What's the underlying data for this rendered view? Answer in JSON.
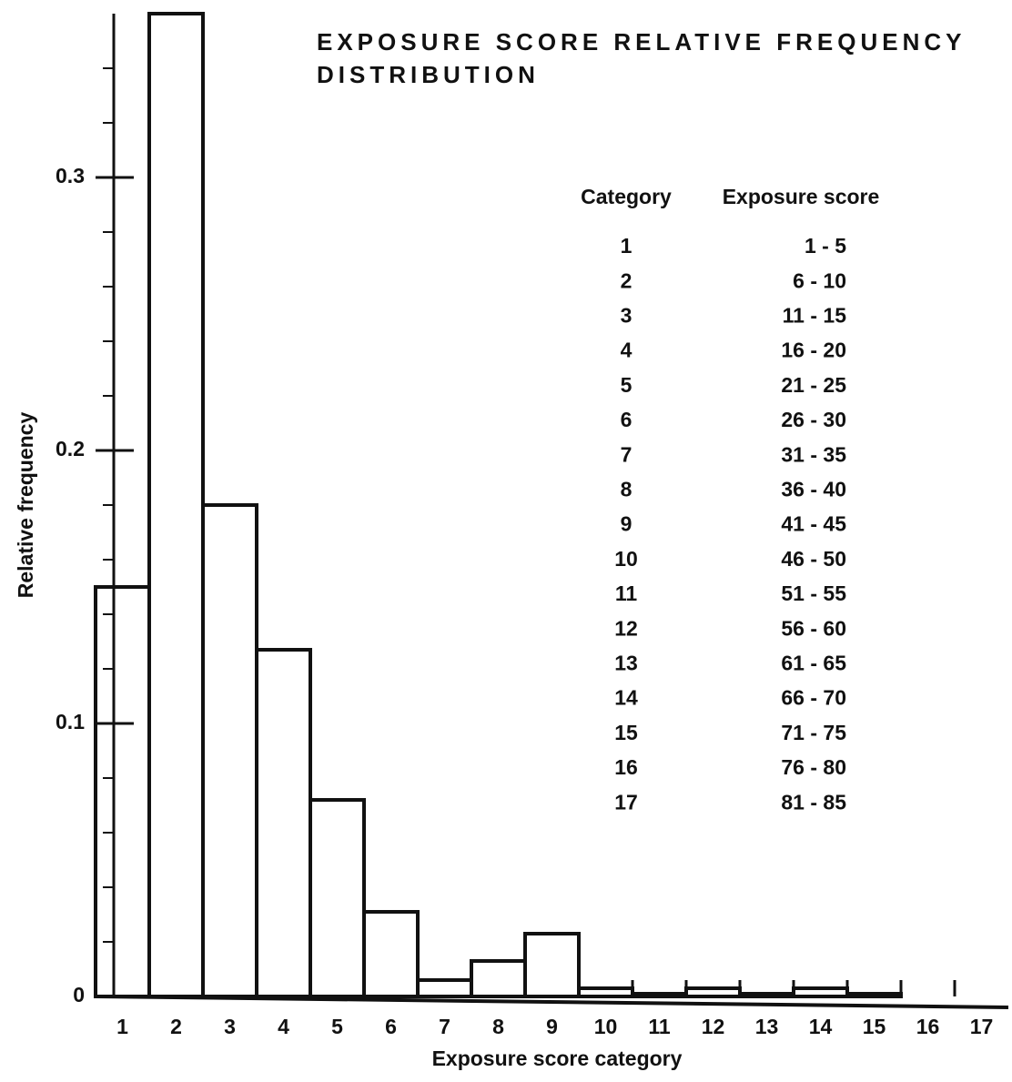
{
  "chart_data": {
    "type": "bar",
    "title": "EXPOSURE SCORE RELATIVE FREQUENCY DISTRIBUTION",
    "x_label": "Exposure score category",
    "y_label": "Relative frequency",
    "categories": [
      "1",
      "2",
      "3",
      "4",
      "5",
      "6",
      "7",
      "8",
      "9",
      "10",
      "11",
      "12",
      "13",
      "14",
      "15",
      "16",
      "17"
    ],
    "values": [
      0.15,
      0.36,
      0.18,
      0.127,
      0.072,
      0.031,
      0.006,
      0.013,
      0.023,
      0.003,
      0.001,
      0.003,
      0.001,
      0.003,
      0.001,
      0,
      0
    ],
    "color": "#111111",
    "ylim": [
      0,
      0.36
    ],
    "yticks": [
      0,
      0.1,
      0.2,
      0.3
    ],
    "yminorticks": [
      0.02,
      0.04,
      0.06,
      0.08,
      0.12,
      0.14,
      0.16,
      0.18,
      0.22,
      0.24,
      0.26,
      0.28,
      0.32,
      0.34
    ],
    "grid": false,
    "table": {
      "headers": [
        "Category",
        "Exposure score"
      ],
      "rows": [
        [
          "1",
          "1 - 5"
        ],
        [
          "2",
          "6 - 10"
        ],
        [
          "3",
          "11 - 15"
        ],
        [
          "4",
          "16 - 20"
        ],
        [
          "5",
          "21 - 25"
        ],
        [
          "6",
          "26 - 30"
        ],
        [
          "7",
          "31 - 35"
        ],
        [
          "8",
          "36 - 40"
        ],
        [
          "9",
          "41 - 45"
        ],
        [
          "10",
          "46 - 50"
        ],
        [
          "11",
          "51 - 55"
        ],
        [
          "12",
          "56 - 60"
        ],
        [
          "13",
          "61 - 65"
        ],
        [
          "14",
          "66 - 70"
        ],
        [
          "15",
          "71 - 75"
        ],
        [
          "16",
          "76 - 80"
        ],
        [
          "17",
          "81 - 85"
        ]
      ]
    }
  }
}
